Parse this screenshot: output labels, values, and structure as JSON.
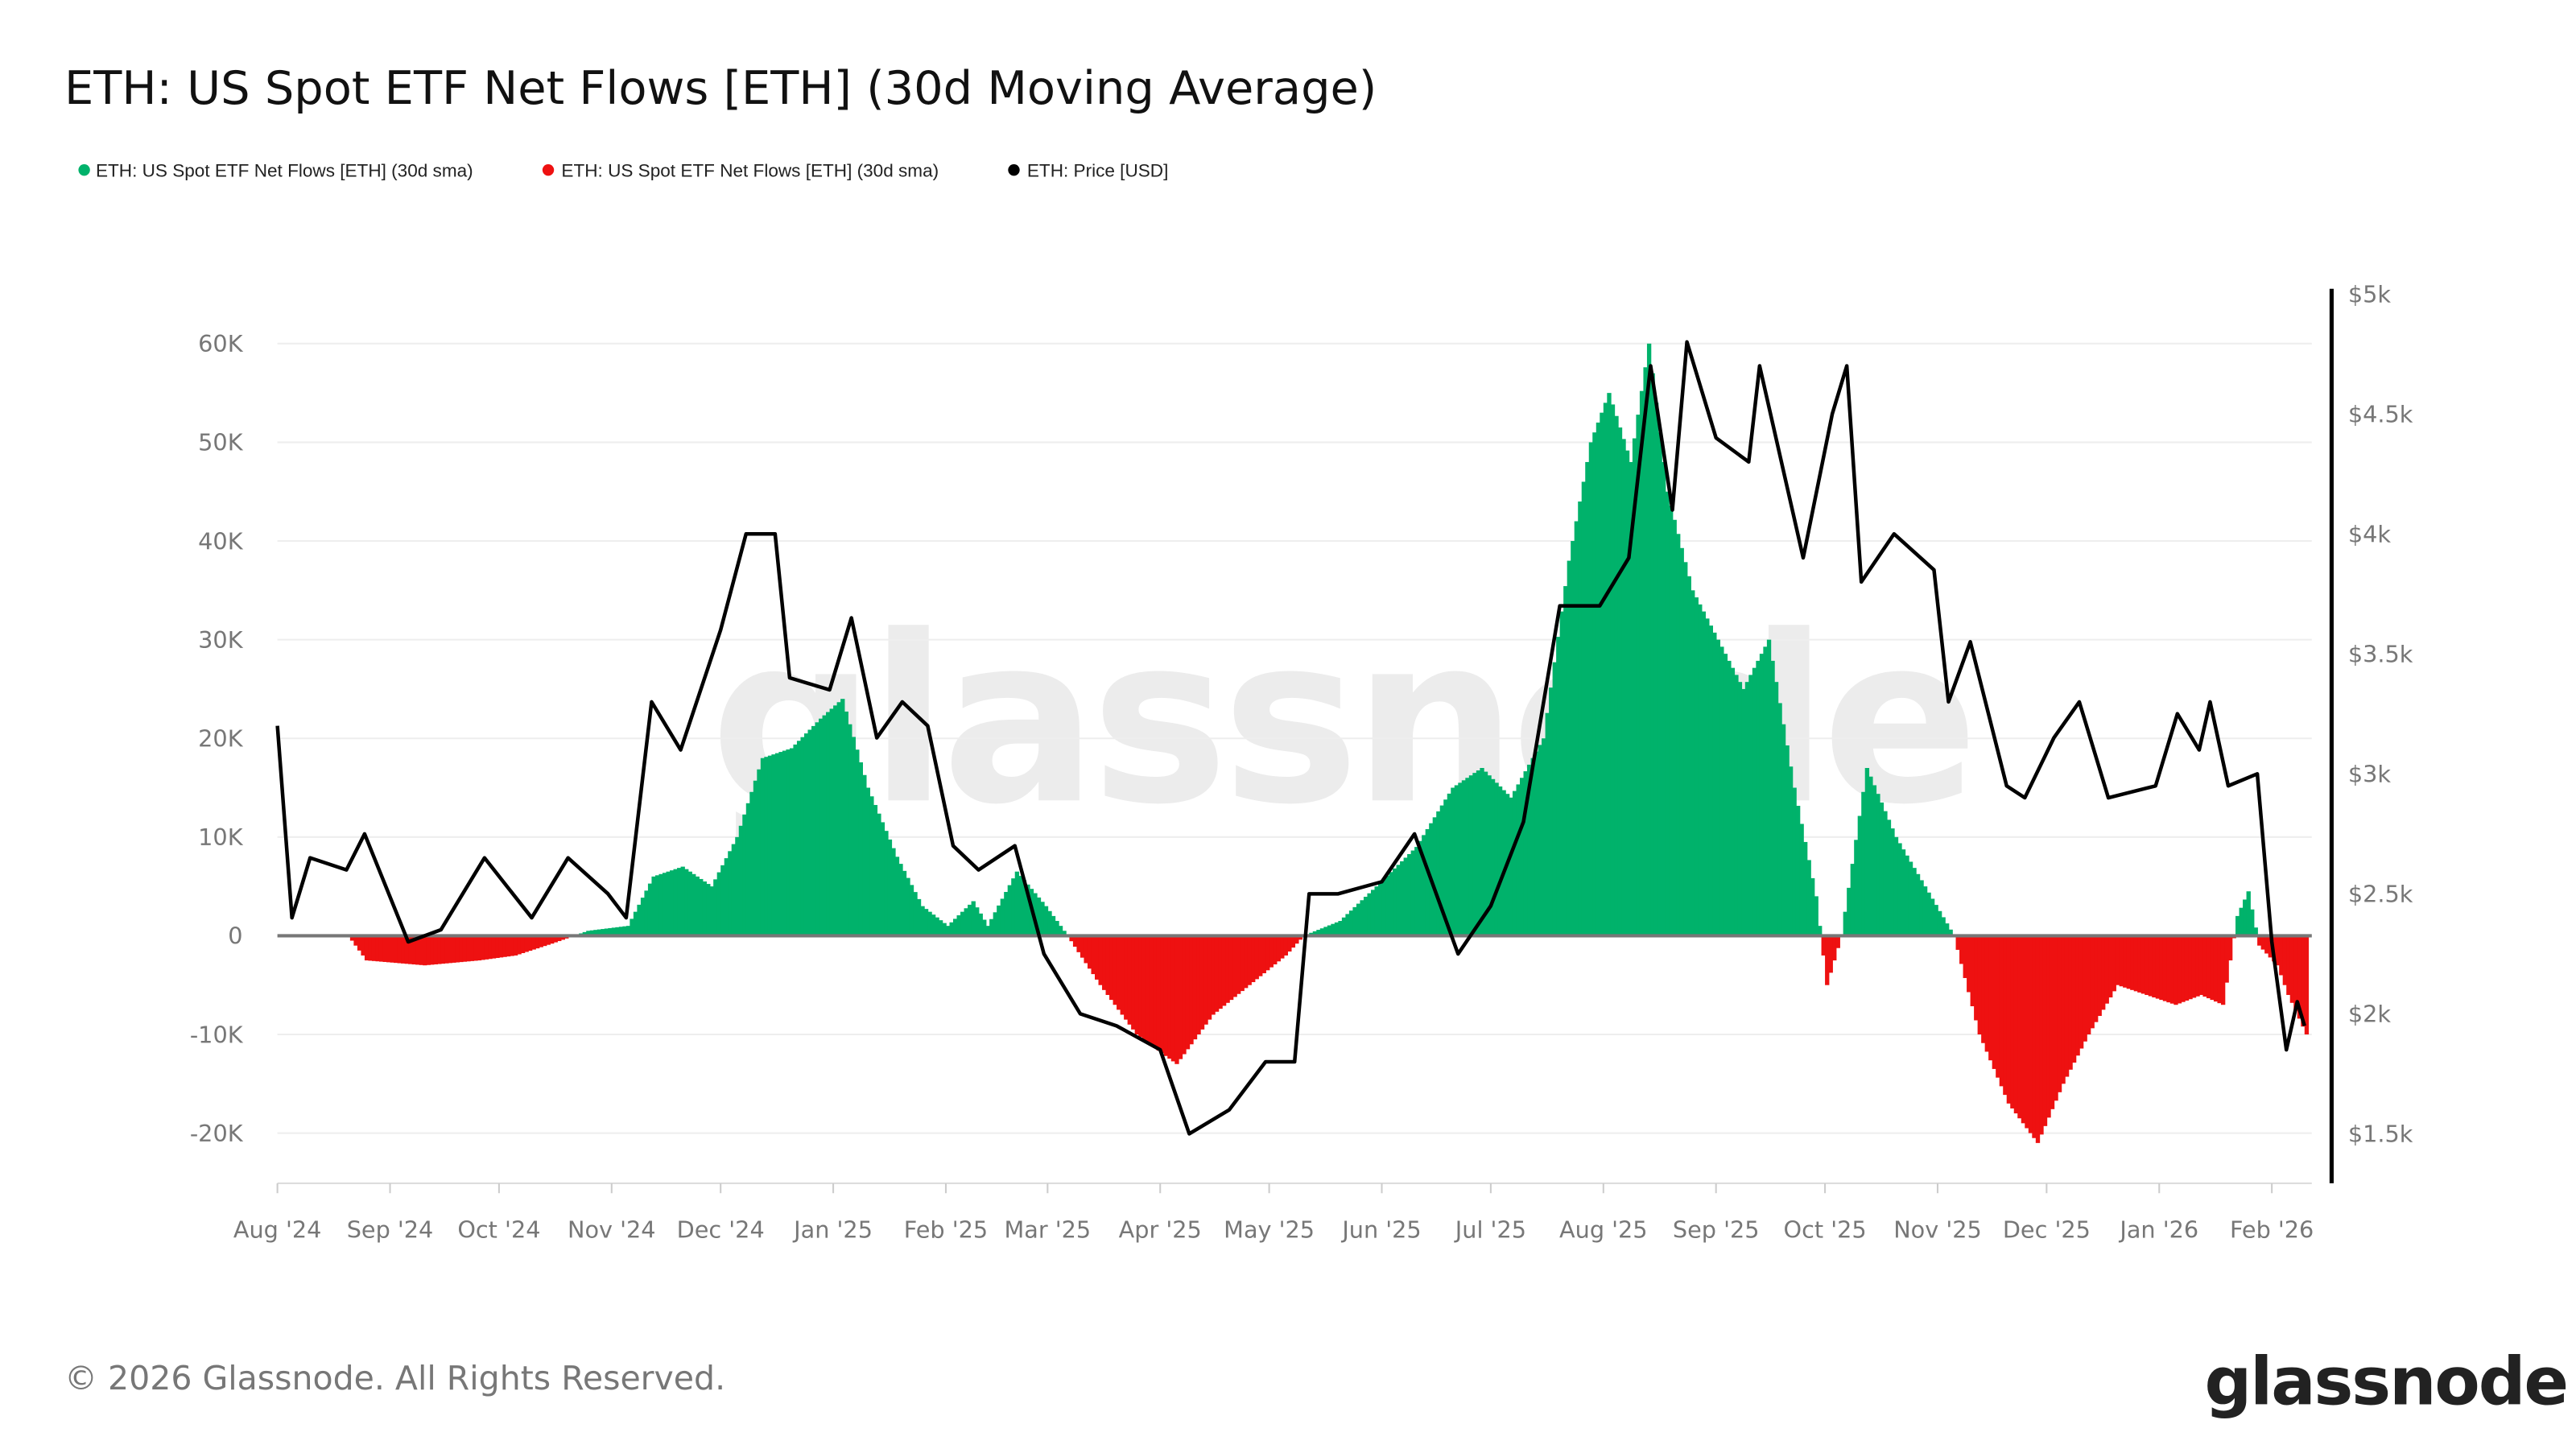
{
  "chart_data": {
    "type": "bar",
    "title": "ETH: US Spot ETF Net Flows [ETH] (30d Moving Average)",
    "legend": [
      {
        "label": "ETH: US Spot ETF Net Flows [ETH] (30d sma)",
        "color": "#00b26b"
      },
      {
        "label": "ETH: US Spot ETF Net Flows [ETH] (30d sma)",
        "color": "#ee1111"
      },
      {
        "label": "ETH: Price [USD]",
        "color": "#000000"
      }
    ],
    "legend_placement": "top-left",
    "grid": true,
    "x_ticks": [
      "Aug '24",
      "Sep '24",
      "Oct '24",
      "Nov '24",
      "Dec '24",
      "Jan '25",
      "Feb '25",
      "Mar '25",
      "Apr '25",
      "May '25",
      "Jun '25",
      "Jul '25",
      "Aug '25",
      "Sep '25",
      "Oct '25",
      "Nov '25",
      "Dec '25",
      "Jan '26",
      "Feb '26"
    ],
    "y_left_ticks": [
      "60K",
      "50K",
      "40K",
      "30K",
      "20K",
      "10K",
      "0",
      "-10K",
      "-20K"
    ],
    "y_left_range": [
      -25000,
      65000
    ],
    "y_right_ticks": [
      "$5k",
      "$4.5k",
      "$4k",
      "$3.5k",
      "$3k",
      "$2.5k",
      "$2k",
      "$1.5k"
    ],
    "y_right_range": [
      1300,
      5000
    ],
    "flows_series": {
      "name": "ETH: US Spot ETF Net Flows [ETH] (30d sma)",
      "positive_color": "#00b26b",
      "negative_color": "#ee1111",
      "points": [
        [
          "2024-08-01",
          0
        ],
        [
          "2024-08-20",
          0
        ],
        [
          "2024-08-25",
          -2500
        ],
        [
          "2024-09-10",
          -3000
        ],
        [
          "2024-09-25",
          -2500
        ],
        [
          "2024-10-05",
          -2000
        ],
        [
          "2024-10-15",
          -800
        ],
        [
          "2024-10-25",
          500
        ],
        [
          "2024-11-05",
          1000
        ],
        [
          "2024-11-12",
          6000
        ],
        [
          "2024-11-20",
          7000
        ],
        [
          "2024-11-28",
          5000
        ],
        [
          "2024-12-05",
          10000
        ],
        [
          "2024-12-12",
          18000
        ],
        [
          "2024-12-20",
          19000
        ],
        [
          "2024-12-28",
          22000
        ],
        [
          "2025-01-03",
          24000
        ],
        [
          "2025-01-10",
          15000
        ],
        [
          "2025-01-18",
          8000
        ],
        [
          "2025-01-25",
          3000
        ],
        [
          "2025-02-01",
          1000
        ],
        [
          "2025-02-08",
          3500
        ],
        [
          "2025-02-12",
          1000
        ],
        [
          "2025-02-20",
          6500
        ],
        [
          "2025-02-28",
          3000
        ],
        [
          "2025-03-06",
          0
        ],
        [
          "2025-03-15",
          -5000
        ],
        [
          "2025-03-25",
          -10000
        ],
        [
          "2025-04-05",
          -13000
        ],
        [
          "2025-04-15",
          -8000
        ],
        [
          "2025-04-25",
          -5000
        ],
        [
          "2025-05-05",
          -2000
        ],
        [
          "2025-05-10",
          0
        ],
        [
          "2025-05-20",
          1500
        ],
        [
          "2025-05-30",
          5000
        ],
        [
          "2025-06-10",
          9000
        ],
        [
          "2025-06-20",
          15000
        ],
        [
          "2025-06-28",
          17000
        ],
        [
          "2025-07-06",
          14000
        ],
        [
          "2025-07-15",
          20000
        ],
        [
          "2025-07-22",
          38000
        ],
        [
          "2025-07-28",
          50000
        ],
        [
          "2025-08-02",
          55000
        ],
        [
          "2025-08-08",
          48000
        ],
        [
          "2025-08-13",
          60000
        ],
        [
          "2025-08-18",
          45000
        ],
        [
          "2025-08-25",
          35000
        ],
        [
          "2025-09-01",
          30000
        ],
        [
          "2025-09-08",
          25000
        ],
        [
          "2025-09-15",
          30000
        ],
        [
          "2025-09-22",
          15000
        ],
        [
          "2025-09-28",
          4000
        ],
        [
          "2025-10-01",
          -5000
        ],
        [
          "2025-10-05",
          0
        ],
        [
          "2025-10-12",
          17000
        ],
        [
          "2025-10-20",
          10000
        ],
        [
          "2025-10-28",
          5000
        ],
        [
          "2025-11-05",
          0
        ],
        [
          "2025-11-12",
          -10000
        ],
        [
          "2025-11-20",
          -17000
        ],
        [
          "2025-11-28",
          -21000
        ],
        [
          "2025-12-05",
          -15000
        ],
        [
          "2025-12-12",
          -10000
        ],
        [
          "2025-12-20",
          -5000
        ],
        [
          "2025-12-28",
          -6000
        ],
        [
          "2026-01-05",
          -7000
        ],
        [
          "2026-01-12",
          -6000
        ],
        [
          "2026-01-18",
          -7000
        ],
        [
          "2026-01-22",
          2000
        ],
        [
          "2026-01-25",
          4500
        ],
        [
          "2026-01-28",
          -1000
        ],
        [
          "2026-02-02",
          -3000
        ],
        [
          "2026-02-05",
          -6000
        ],
        [
          "2026-02-10",
          -10000
        ]
      ]
    },
    "price_series": {
      "name": "ETH: Price [USD]",
      "color": "#000000",
      "points": [
        [
          "2024-08-01",
          3200
        ],
        [
          "2024-08-05",
          2400
        ],
        [
          "2024-08-10",
          2650
        ],
        [
          "2024-08-20",
          2600
        ],
        [
          "2024-08-25",
          2750
        ],
        [
          "2024-09-06",
          2300
        ],
        [
          "2024-09-15",
          2350
        ],
        [
          "2024-09-27",
          2650
        ],
        [
          "2024-10-10",
          2400
        ],
        [
          "2024-10-20",
          2650
        ],
        [
          "2024-10-31",
          2500
        ],
        [
          "2024-11-05",
          2400
        ],
        [
          "2024-11-12",
          3300
        ],
        [
          "2024-11-20",
          3100
        ],
        [
          "2024-12-01",
          3600
        ],
        [
          "2024-12-08",
          4000
        ],
        [
          "2024-12-16",
          4000
        ],
        [
          "2024-12-20",
          3400
        ],
        [
          "2024-12-31",
          3350
        ],
        [
          "2025-01-06",
          3650
        ],
        [
          "2025-01-13",
          3150
        ],
        [
          "2025-01-20",
          3300
        ],
        [
          "2025-01-27",
          3200
        ],
        [
          "2025-02-03",
          2700
        ],
        [
          "2025-02-10",
          2600
        ],
        [
          "2025-02-20",
          2700
        ],
        [
          "2025-02-28",
          2250
        ],
        [
          "2025-03-10",
          2000
        ],
        [
          "2025-03-20",
          1950
        ],
        [
          "2025-04-01",
          1850
        ],
        [
          "2025-04-09",
          1500
        ],
        [
          "2025-04-20",
          1600
        ],
        [
          "2025-04-30",
          1800
        ],
        [
          "2025-05-08",
          1800
        ],
        [
          "2025-05-12",
          2500
        ],
        [
          "2025-05-20",
          2500
        ],
        [
          "2025-06-01",
          2550
        ],
        [
          "2025-06-10",
          2750
        ],
        [
          "2025-06-22",
          2250
        ],
        [
          "2025-07-01",
          2450
        ],
        [
          "2025-07-10",
          2800
        ],
        [
          "2025-07-20",
          3700
        ],
        [
          "2025-07-31",
          3700
        ],
        [
          "2025-08-08",
          3900
        ],
        [
          "2025-08-14",
          4700
        ],
        [
          "2025-08-20",
          4100
        ],
        [
          "2025-08-24",
          4800
        ],
        [
          "2025-09-01",
          4400
        ],
        [
          "2025-09-10",
          4300
        ],
        [
          "2025-09-13",
          4700
        ],
        [
          "2025-09-25",
          3900
        ],
        [
          "2025-10-03",
          4500
        ],
        [
          "2025-10-07",
          4700
        ],
        [
          "2025-10-11",
          3800
        ],
        [
          "2025-10-20",
          4000
        ],
        [
          "2025-10-31",
          3850
        ],
        [
          "2025-11-04",
          3300
        ],
        [
          "2025-11-10",
          3550
        ],
        [
          "2025-11-20",
          2950
        ],
        [
          "2025-11-25",
          2900
        ],
        [
          "2025-12-03",
          3150
        ],
        [
          "2025-12-10",
          3300
        ],
        [
          "2025-12-18",
          2900
        ],
        [
          "2025-12-31",
          2950
        ],
        [
          "2026-01-06",
          3250
        ],
        [
          "2026-01-12",
          3100
        ],
        [
          "2026-01-15",
          3300
        ],
        [
          "2026-01-20",
          2950
        ],
        [
          "2026-01-28",
          3000
        ],
        [
          "2026-02-01",
          2300
        ],
        [
          "2026-02-05",
          1850
        ],
        [
          "2026-02-08",
          2050
        ],
        [
          "2026-02-10",
          1950
        ]
      ]
    }
  },
  "watermark": "glassnode",
  "footer": {
    "copyright": "© 2026 Glassnode. All Rights Reserved.",
    "logo": "glassnode"
  }
}
